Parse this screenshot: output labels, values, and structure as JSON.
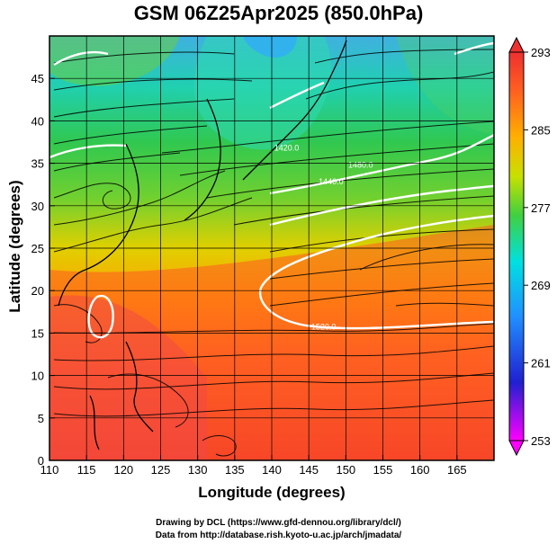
{
  "title": "GSM 06Z25Apr2025 (850.0hPa)",
  "xlabel": "Longitude (degrees)",
  "ylabel": "Latitude  (degrees)",
  "credits": [
    "Drawing by DCL (https://www.gfd-dennou.org/library/dcl/)",
    "Data from http://database.rish.kyoto-u.ac.jp/arch/jmadata/"
  ],
  "map": {
    "lon_range": [
      110,
      170
    ],
    "lat_range": [
      0,
      50
    ],
    "lon_ticks": [
      110,
      115,
      120,
      125,
      130,
      135,
      140,
      145,
      150,
      155,
      160,
      165
    ],
    "lat_ticks": [
      0,
      5,
      10,
      15,
      20,
      25,
      30,
      35,
      40,
      45
    ],
    "grid": true,
    "contour_labels": [
      {
        "text": "1420.0",
        "lon": 142,
        "lat": 36.5
      },
      {
        "text": "1440.0",
        "lon": 148,
        "lat": 32.5
      },
      {
        "text": "1480.0",
        "lon": 152,
        "lat": 34.5
      },
      {
        "text": "1520.0",
        "lon": 147,
        "lat": 15.4
      }
    ]
  },
  "colorbar": {
    "ticks": [
      253,
      261,
      269,
      277,
      285,
      293
    ],
    "min": 253,
    "max": 293,
    "colors": [
      "#ff00ff",
      "#2020d0",
      "#2090ff",
      "#00e0e0",
      "#40d040",
      "#c8e000",
      "#ffb000",
      "#ff6020",
      "#ee3030"
    ]
  }
}
